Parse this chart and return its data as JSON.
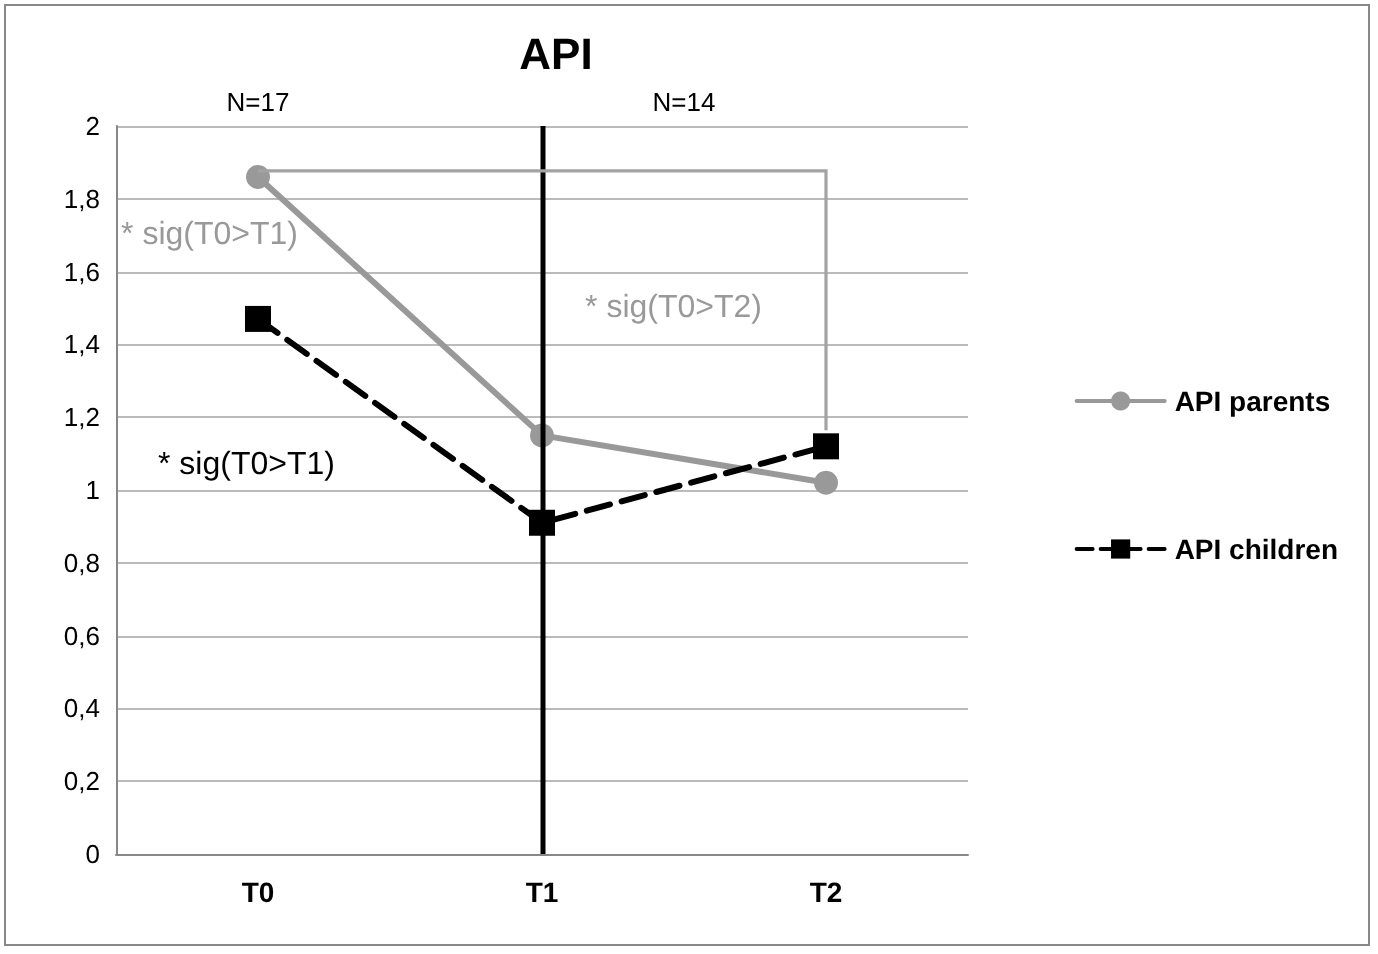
{
  "chart_data": {
    "type": "line",
    "title": "API",
    "categories": [
      "T0",
      "T1",
      "T2"
    ],
    "series": [
      {
        "name": "API parents",
        "color": "#999999",
        "values": [
          1.86,
          1.15,
          1.02
        ],
        "marker": "circle",
        "line_style": "solid"
      },
      {
        "name": "API children",
        "color": "#000000",
        "values": [
          1.47,
          0.91,
          1.12
        ],
        "marker": "square",
        "line_style": "dashed"
      }
    ],
    "ylim": [
      0,
      2
    ],
    "yticks": [
      0,
      {
        "value": 0.2,
        "label": "0,2"
      },
      {
        "value": 0.4,
        "label": "0,4"
      },
      {
        "value": 0.6,
        "label": "0,6"
      },
      {
        "value": 0.8,
        "label": "0,8"
      },
      1,
      {
        "value": 1.2,
        "label": "1,2"
      },
      {
        "value": 1.4,
        "label": "1,4"
      },
      {
        "value": 1.6,
        "label": "1,6"
      },
      {
        "value": 1.8,
        "label": "1,8"
      },
      2
    ],
    "grid": "y",
    "legend": "right",
    "ref_lines": [
      {
        "axis": "x",
        "value": "T1",
        "color": "#000000"
      }
    ],
    "annotations": [
      "N=17",
      "N=14",
      "* sig(T0>T1)",
      "* sig(T0>T1)",
      "* sig(T0>T2)"
    ]
  }
}
